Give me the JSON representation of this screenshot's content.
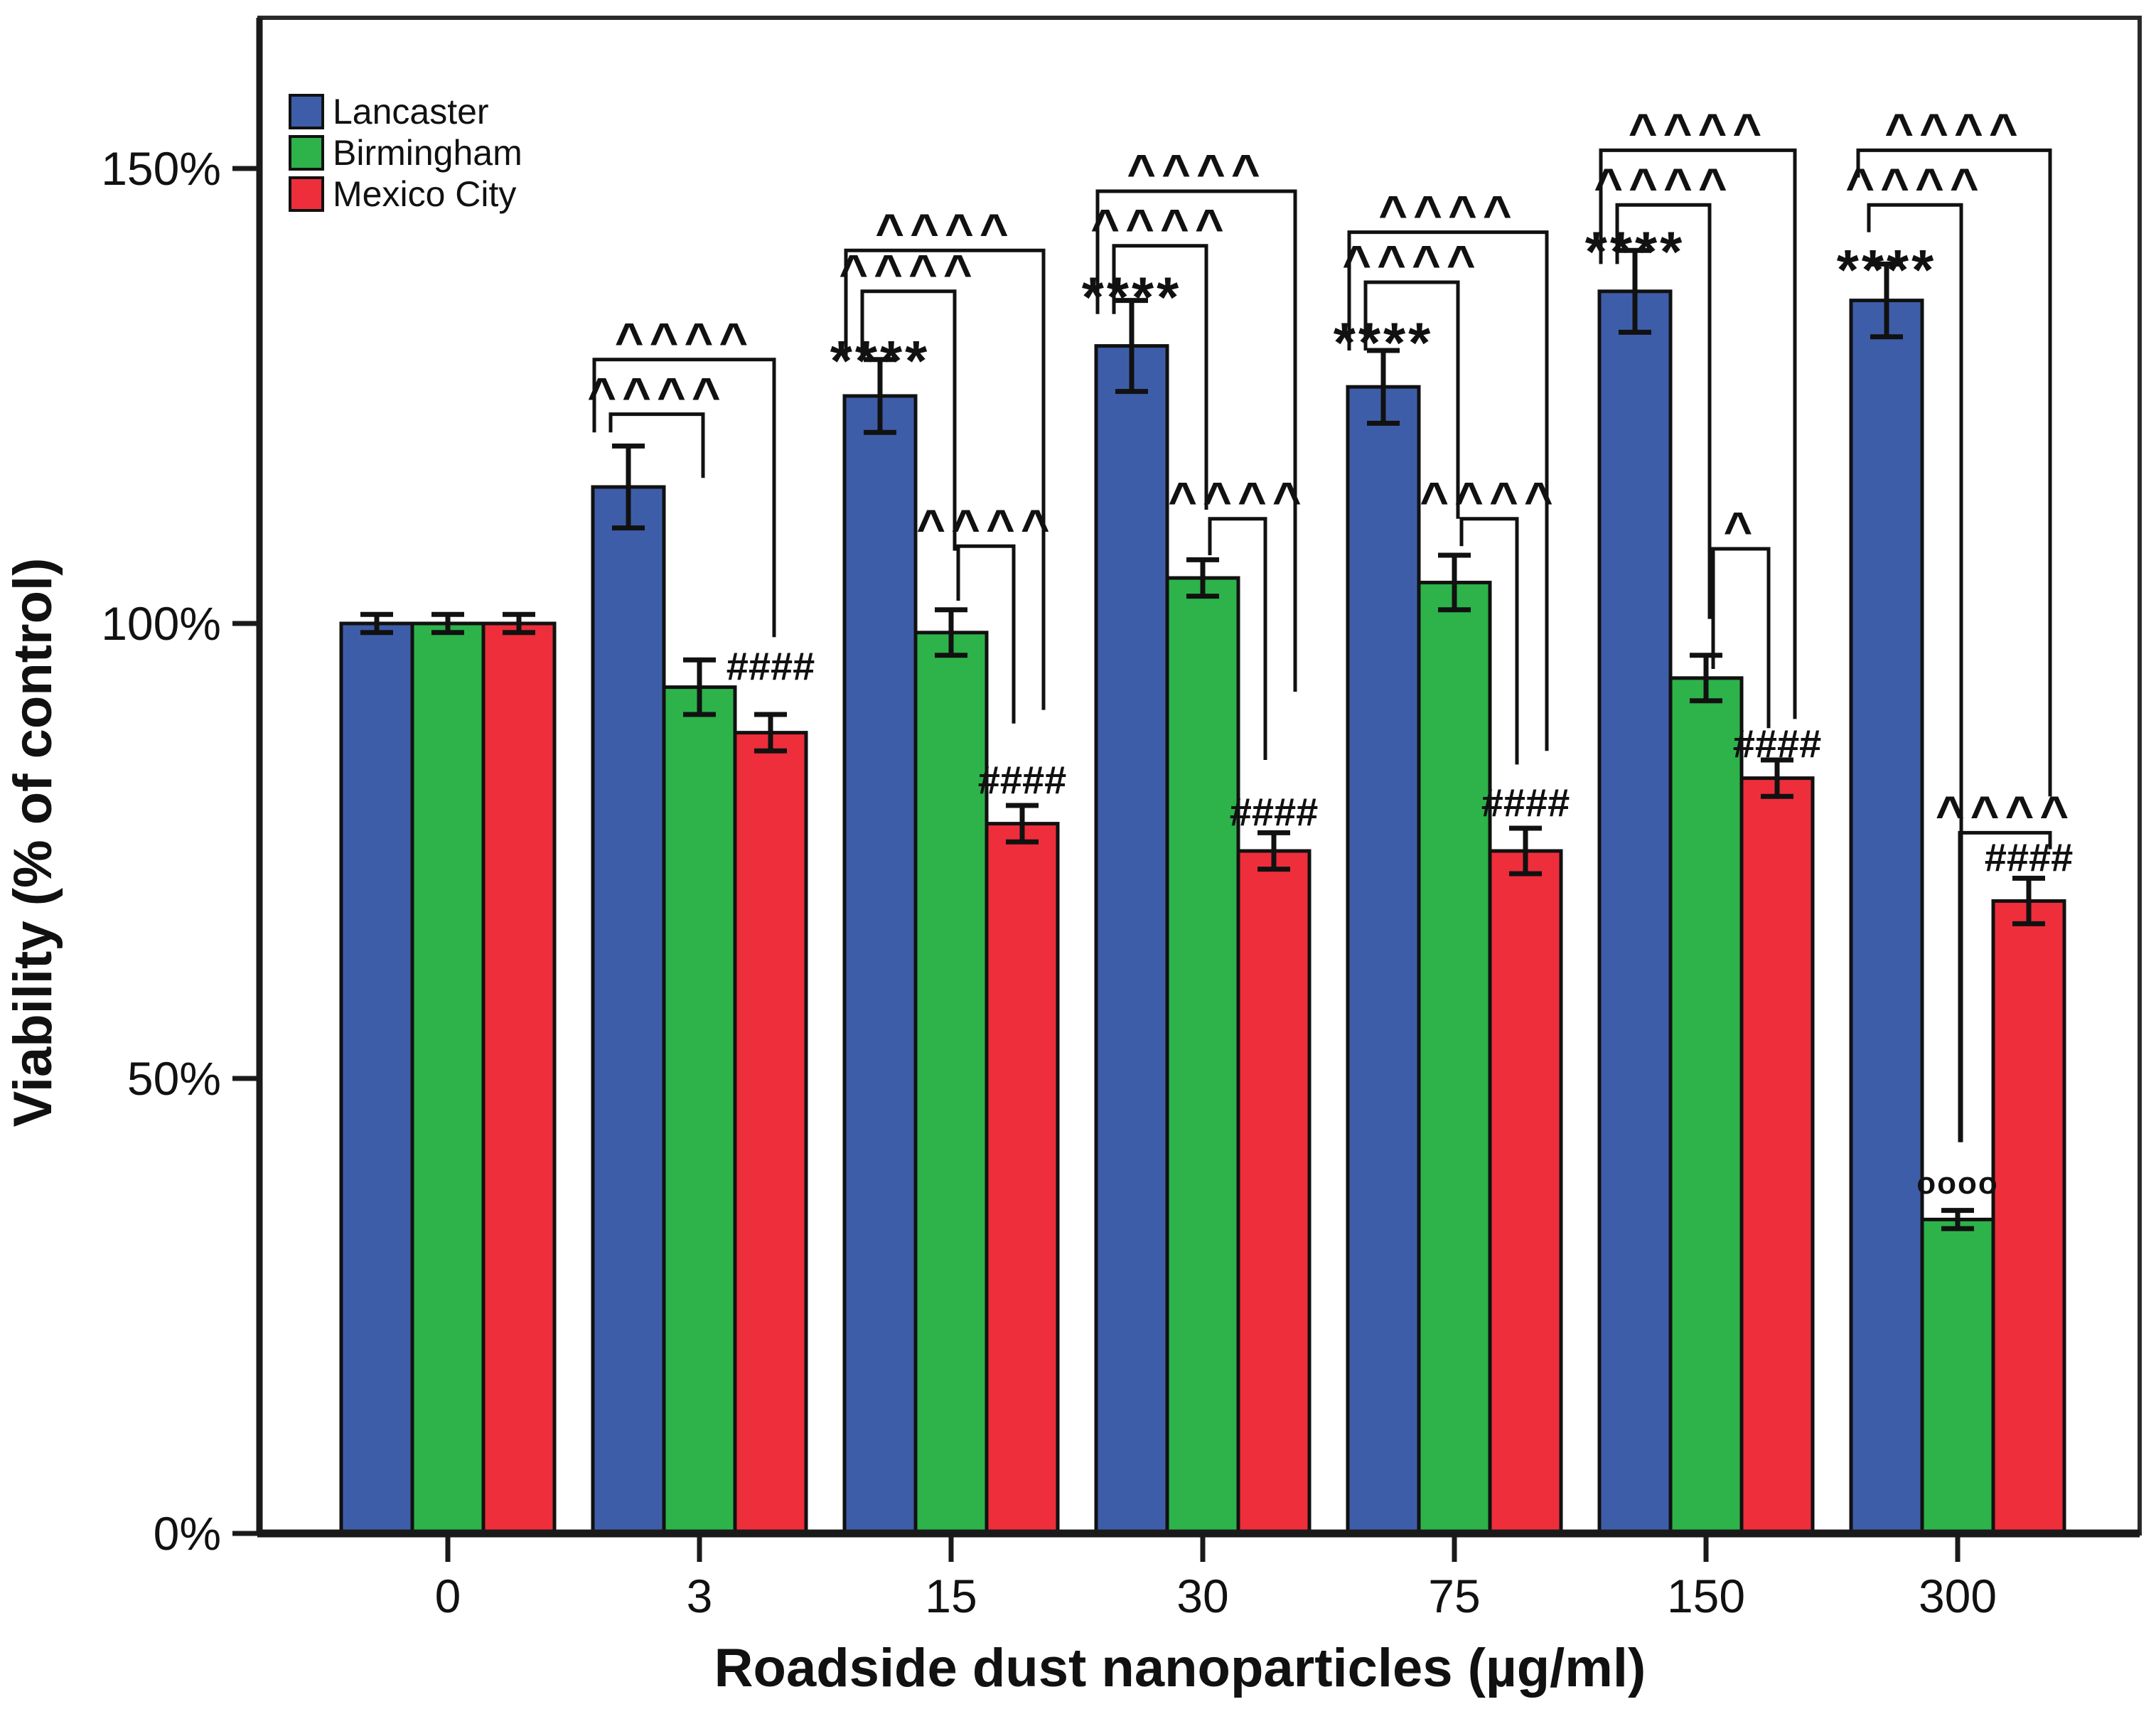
{
  "chart_data": {
    "type": "bar",
    "title": "",
    "xlabel": "Roadside dust nanoparticles (µg/ml)",
    "ylabel": "Viability (% of control)",
    "categories": [
      "0",
      "3",
      "15",
      "30",
      "75",
      "150",
      "300"
    ],
    "y_axis": {
      "ticks": [
        {
          "label": "0%",
          "value": 0
        },
        {
          "label": "50%",
          "value": 50
        },
        {
          "label": "100%",
          "value": 100
        },
        {
          "label": "150%",
          "value": 150
        }
      ],
      "ylim": [
        0,
        166
      ]
    },
    "legend_position": "top-left",
    "grid": false,
    "series": [
      {
        "name": "Lancaster",
        "color": "#3E5DA9",
        "values": [
          100,
          115,
          125,
          130.5,
          126,
          136.5,
          135.5
        ],
        "errors": [
          1,
          4.5,
          4,
          5,
          4,
          4.5,
          4
        ]
      },
      {
        "name": "Birmingham",
        "color": "#2DB34A",
        "values": [
          100,
          93,
          99,
          105,
          104.5,
          94,
          34.5
        ],
        "errors": [
          1,
          3,
          2.5,
          2,
          3,
          2.5,
          1
        ]
      },
      {
        "name": "Mexico City",
        "color": "#EE2E3B",
        "values": [
          100,
          88,
          78,
          75,
          75,
          83,
          69.5
        ],
        "errors": [
          1,
          2,
          2,
          2,
          2.5,
          2,
          2.5
        ]
      }
    ],
    "annotations": {
      "stars": [
        {
          "group": 2,
          "text": "****",
          "y": 131
        },
        {
          "group": 3,
          "text": "****",
          "y": 138
        },
        {
          "group": 4,
          "text": "****",
          "y": 133
        },
        {
          "group": 5,
          "text": "****",
          "y": 143
        },
        {
          "group": 6,
          "text": "****",
          "y": 141
        }
      ],
      "hashes": [
        {
          "group": 1,
          "text": "####",
          "y": 95.5
        },
        {
          "group": 2,
          "text": "####",
          "y": 83
        },
        {
          "group": 3,
          "text": "####",
          "y": 79.5
        },
        {
          "group": 4,
          "text": "####",
          "y": 80.5
        },
        {
          "group": 5,
          "text": "####",
          "y": 87
        },
        {
          "group": 6,
          "text": "####",
          "y": 74.5
        }
      ],
      "rings": [
        {
          "group": 6,
          "text": "oooo",
          "y": 38.5
        }
      ],
      "brackets": [
        {
          "group": 1,
          "from": 0,
          "to": 1,
          "text": "^^^^",
          "top": 123,
          "left_end": 121,
          "right_end": 116,
          "lx": -25,
          "rx": 5
        },
        {
          "group": 1,
          "from": 0,
          "to": 2,
          "text": "^^^^",
          "top": 129,
          "left_end": 121,
          "right_end": 98.5,
          "lx": -48,
          "rx": 5
        },
        {
          "group": 2,
          "from": 0,
          "to": 1,
          "text": "^^^^",
          "top": 136.5,
          "left_end": 129,
          "right_end": 108,
          "lx": -25,
          "rx": 5
        },
        {
          "group": 2,
          "from": 0,
          "to": 2,
          "text": "^^^^",
          "top": 141,
          "left_end": 129,
          "right_end": 90.5,
          "lx": -48,
          "rx": 30
        },
        {
          "group": 2,
          "from": 1,
          "to": 2,
          "text": "^^^^",
          "top": 108.5,
          "left_end": 102.5,
          "right_end": 89,
          "lx": 10,
          "rx": -12
        },
        {
          "group": 3,
          "from": 0,
          "to": 1,
          "text": "^^^^",
          "top": 141.5,
          "left_end": 134,
          "right_end": 112.5,
          "lx": -25,
          "rx": 5
        },
        {
          "group": 3,
          "from": 0,
          "to": 2,
          "text": "^^^^",
          "top": 147.5,
          "left_end": 134,
          "right_end": 92.5,
          "lx": -48,
          "rx": 30
        },
        {
          "group": 3,
          "from": 1,
          "to": 2,
          "text": "^^^^",
          "top": 111.5,
          "left_end": 107.5,
          "right_end": 85,
          "lx": 10,
          "rx": -12
        },
        {
          "group": 4,
          "from": 0,
          "to": 1,
          "text": "^^^^",
          "top": 137.5,
          "left_end": 130,
          "right_end": 111.5,
          "lx": -25,
          "rx": 5
        },
        {
          "group": 4,
          "from": 0,
          "to": 2,
          "text": "^^^^",
          "top": 143,
          "left_end": 130,
          "right_end": 86,
          "lx": -48,
          "rx": 30
        },
        {
          "group": 4,
          "from": 1,
          "to": 2,
          "text": "^^^^",
          "top": 111.5,
          "left_end": 108.5,
          "right_end": 84.5,
          "lx": 10,
          "rx": -12
        },
        {
          "group": 5,
          "from": 0,
          "to": 1,
          "text": "^^^^",
          "top": 146,
          "left_end": 139.5,
          "right_end": 100.5,
          "lx": -25,
          "rx": 5
        },
        {
          "group": 5,
          "from": 0,
          "to": 2,
          "text": "^^^^",
          "top": 152,
          "left_end": 139.5,
          "right_end": 89.5,
          "lx": -48,
          "rx": 25
        },
        {
          "group": 5,
          "from": 1,
          "to": 2,
          "text": "^",
          "top": 108.2,
          "left_end": 95,
          "right_end": 88.5,
          "lx": 10,
          "rx": -12
        },
        {
          "group": 6,
          "from": 0,
          "to": 1,
          "text": "^^^^",
          "top": 146,
          "left_end": 143,
          "right_end": 43,
          "lx": -25,
          "rx": 5
        },
        {
          "group": 6,
          "from": 0,
          "to": 2,
          "text": "^^^^",
          "top": 152,
          "left_end": 149,
          "right_end": 81,
          "lx": -40,
          "rx": 30
        },
        {
          "group": 6,
          "from": 1,
          "to": 2,
          "text": "^^^^",
          "top": 77,
          "left_end": 43,
          "right_end": 75.2,
          "lx": 3,
          "rx": 30
        }
      ]
    }
  }
}
